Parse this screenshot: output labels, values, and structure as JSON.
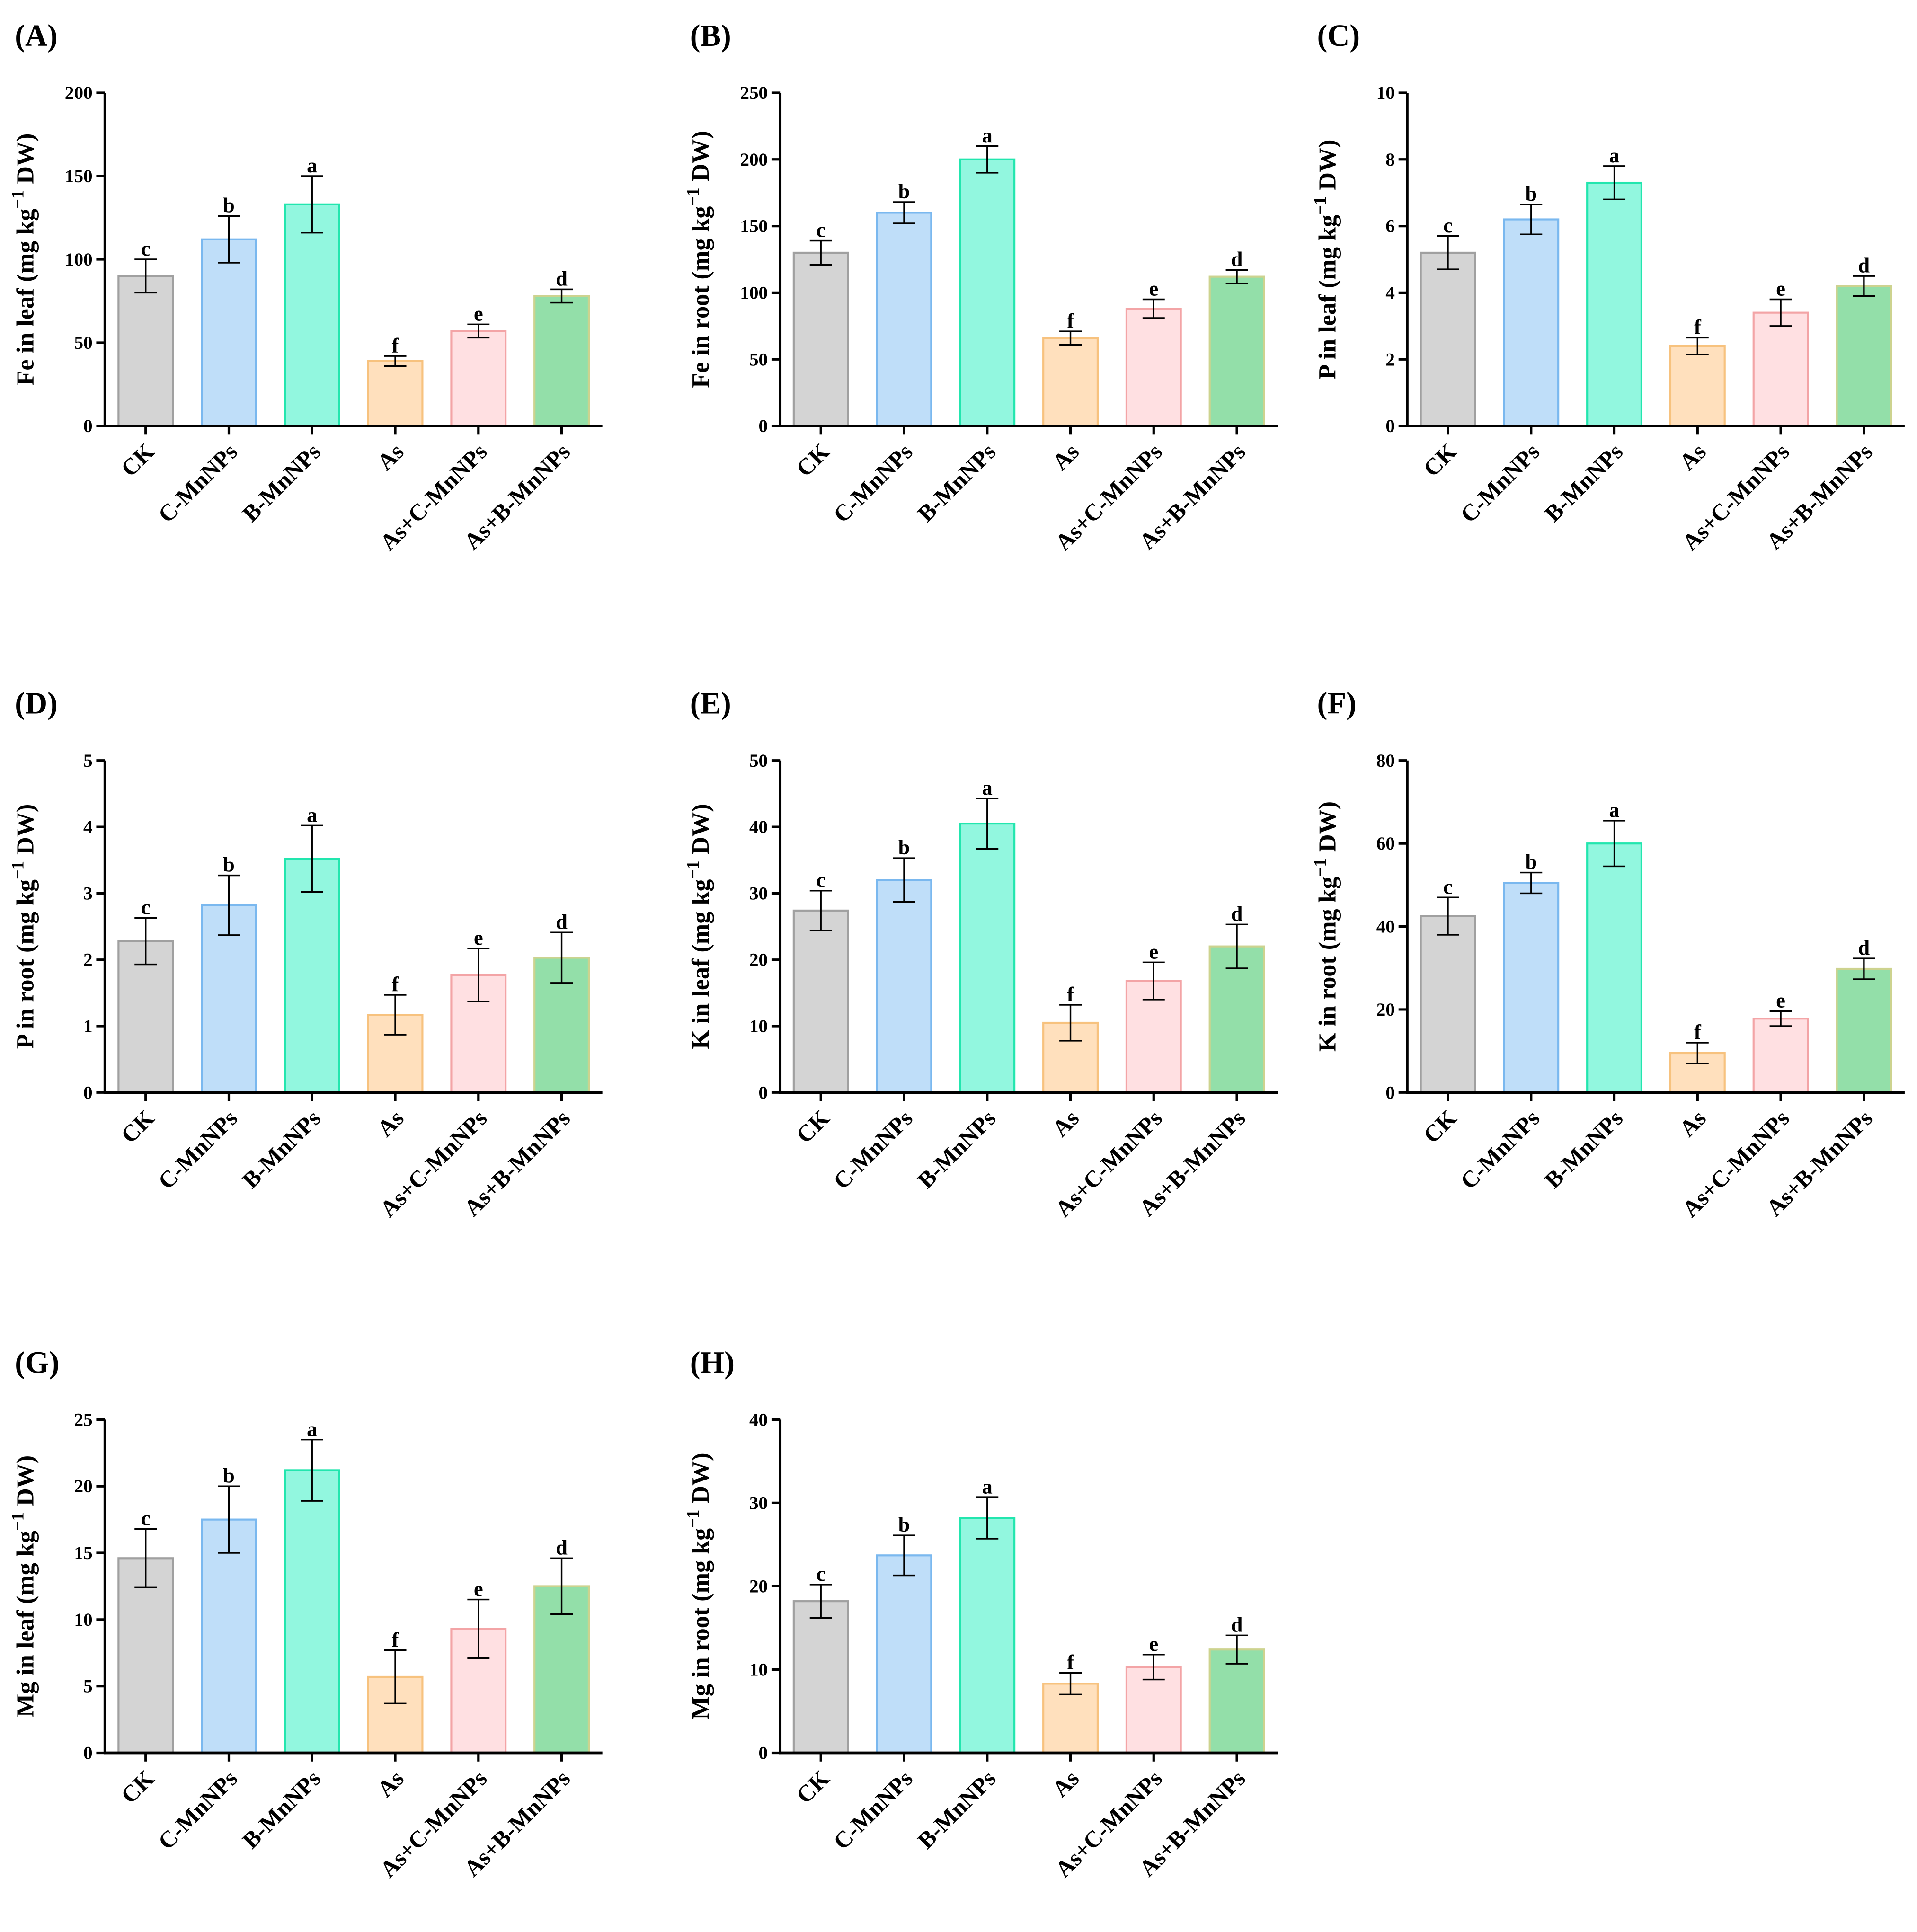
{
  "groups": [
    "CK",
    "C-MnNPs",
    "B-MnNPs",
    "As",
    "As+C-MnNPs",
    "As+B-MnNPs"
  ],
  "colors": {
    "fills": [
      "#d4d4d4",
      "#bfdef9",
      "#92f7df",
      "#ffe0bd",
      "#ffe0e2",
      "#93dfa9"
    ],
    "strokes": [
      "#a0a0a0",
      "#7ab8ef",
      "#22e6ae",
      "#f7c27e",
      "#f3a4a6",
      "#cdd38f"
    ]
  },
  "chart_data": [
    {
      "panel": "(A)",
      "type": "bar",
      "ylabel": {
        "main": "Fe in leaf (mg kg",
        "sup": "−1",
        "tail": " DW)"
      },
      "ylim": [
        0,
        200
      ],
      "yticks": [
        "0",
        "50",
        "100",
        "150",
        "200"
      ],
      "values": [
        90,
        112,
        133,
        39,
        57,
        78
      ],
      "errors": [
        10,
        14,
        17,
        3,
        4,
        4
      ],
      "letters": [
        "c",
        "b",
        "a",
        "f",
        "e",
        "d"
      ]
    },
    {
      "panel": "(B)",
      "type": "bar",
      "ylabel": {
        "main": "Fe in root (mg kg",
        "sup": "−1",
        "tail": " DW)"
      },
      "ylim": [
        0,
        250
      ],
      "yticks": [
        "0",
        "50",
        "100",
        "150",
        "200",
        "250"
      ],
      "values": [
        130,
        160,
        200,
        66,
        88,
        112
      ],
      "errors": [
        9,
        8,
        10,
        5,
        7,
        5
      ],
      "letters": [
        "c",
        "b",
        "a",
        "f",
        "e",
        "d"
      ]
    },
    {
      "panel": "(C)",
      "type": "bar",
      "ylabel": {
        "main": "P in leaf (mg kg",
        "sup": "−1",
        "tail": " DW)"
      },
      "ylim": [
        0,
        10
      ],
      "yticks": [
        "0",
        "2",
        "4",
        "6",
        "8",
        "10"
      ],
      "values": [
        5.2,
        6.2,
        7.3,
        2.4,
        3.4,
        4.2
      ],
      "errors": [
        0.5,
        0.45,
        0.5,
        0.25,
        0.4,
        0.3
      ],
      "letters": [
        "c",
        "b",
        "a",
        "f",
        "e",
        "d"
      ]
    },
    {
      "panel": "(D)",
      "type": "bar",
      "ylabel": {
        "main": "P in root (mg kg",
        "sup": "−1",
        "tail": " DW)"
      },
      "ylim": [
        0,
        5
      ],
      "yticks": [
        "0",
        "1",
        "2",
        "3",
        "4",
        "5"
      ],
      "values": [
        2.28,
        2.82,
        3.52,
        1.17,
        1.77,
        2.03
      ],
      "errors": [
        0.35,
        0.45,
        0.5,
        0.3,
        0.4,
        0.38
      ],
      "letters": [
        "c",
        "b",
        "a",
        "f",
        "e",
        "d"
      ]
    },
    {
      "panel": "(E)",
      "type": "bar",
      "ylabel": {
        "main": "K in leaf (mg kg",
        "sup": "−1",
        "tail": " DW)"
      },
      "ylim": [
        0,
        50
      ],
      "yticks": [
        "0",
        "10",
        "20",
        "30",
        "40",
        "50"
      ],
      "values": [
        27.4,
        32,
        40.5,
        10.5,
        16.8,
        22
      ],
      "errors": [
        3,
        3.3,
        3.8,
        2.7,
        2.8,
        3.3
      ],
      "letters": [
        "c",
        "b",
        "a",
        "f",
        "e",
        "d"
      ]
    },
    {
      "panel": "(F)",
      "type": "bar",
      "ylabel": {
        "main": "K in root (mg kg",
        "sup": "−1",
        "tail": " DW)"
      },
      "ylim": [
        0,
        80
      ],
      "yticks": [
        "0",
        "20",
        "40",
        "60",
        "80"
      ],
      "values": [
        42.5,
        50.5,
        60,
        9.5,
        17.8,
        29.8
      ],
      "errors": [
        4.5,
        2.5,
        5.5,
        2.5,
        1.8,
        2.5
      ],
      "letters": [
        "c",
        "b",
        "a",
        "f",
        "e",
        "d"
      ]
    },
    {
      "panel": "(G)",
      "type": "bar",
      "ylabel": {
        "main": "Mg in leaf (mg kg",
        "sup": "−1",
        "tail": " DW)"
      },
      "ylim": [
        0,
        25
      ],
      "yticks": [
        "0",
        "5",
        "10",
        "15",
        "20",
        "25"
      ],
      "values": [
        14.6,
        17.5,
        21.2,
        5.7,
        9.3,
        12.5
      ],
      "errors": [
        2.2,
        2.5,
        2.3,
        2,
        2.2,
        2.1
      ],
      "letters": [
        "c",
        "b",
        "a",
        "f",
        "e",
        "d"
      ]
    },
    {
      "panel": "(H)",
      "type": "bar",
      "ylabel": {
        "main": "Mg in root (mg kg",
        "sup": "−1",
        "tail": " DW)"
      },
      "ylim": [
        0,
        40
      ],
      "yticks": [
        "0",
        "10",
        "20",
        "30",
        "40"
      ],
      "values": [
        18.2,
        23.7,
        28.2,
        8.3,
        10.3,
        12.4
      ],
      "errors": [
        2,
        2.4,
        2.5,
        1.3,
        1.5,
        1.7
      ],
      "letters": [
        "c",
        "b",
        "a",
        "f",
        "e",
        "d"
      ]
    }
  ]
}
